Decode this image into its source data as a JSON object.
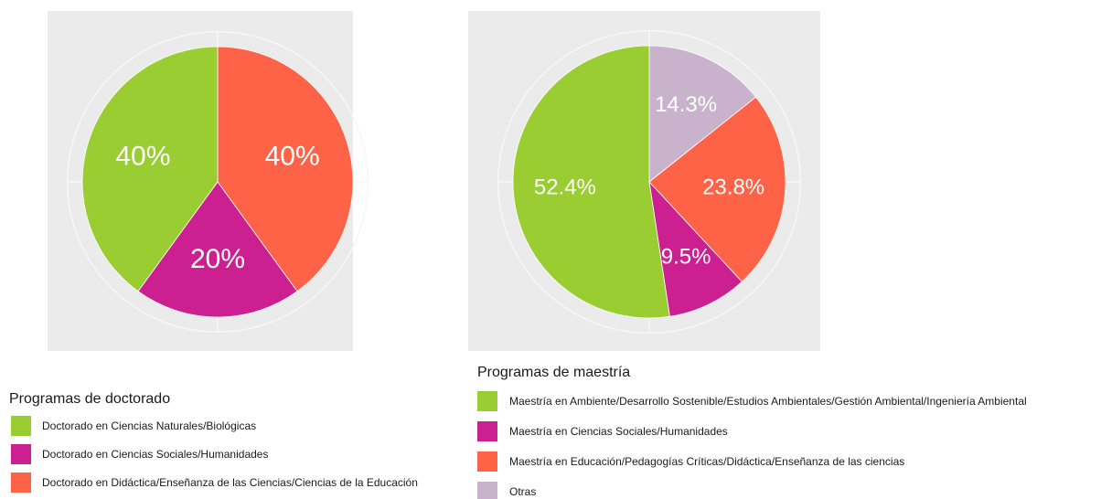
{
  "chart_data": [
    {
      "type": "pie",
      "legend_title": "Programas de doctorado",
      "categories": [
        "Doctorado en Ciencias Naturales/Biológicas",
        "Doctorado en Ciencias Sociales/Humanidades",
        "Doctorado en Didáctica/Enseñanza de las Ciencias/Ciencias de la Educación"
      ],
      "values": [
        40,
        20,
        40
      ],
      "value_labels": [
        "40%",
        "20%",
        "40%"
      ],
      "colors": [
        "#9acd32",
        "#cd2090",
        "#ff6347"
      ]
    },
    {
      "type": "pie",
      "legend_title": "Programas de maestría",
      "categories": [
        "Maestría en Ambiente/Desarrollo Sostenible/Estudios Ambientales/Gestión Ambiental/Ingeniería Ambiental",
        "Maestría en Ciencias Sociales/Humanidades",
        "Maestría en Educación/Pedagogías Críticas/Didáctica/Enseñanza de las ciencias",
        "Otras"
      ],
      "values": [
        52.4,
        9.5,
        23.8,
        14.3
      ],
      "value_labels": [
        "52.4%",
        "9.5%",
        "23.8%",
        "14.3%"
      ],
      "colors": [
        "#9acd32",
        "#cd2090",
        "#ff6347",
        "#c9b2cc"
      ]
    }
  ]
}
